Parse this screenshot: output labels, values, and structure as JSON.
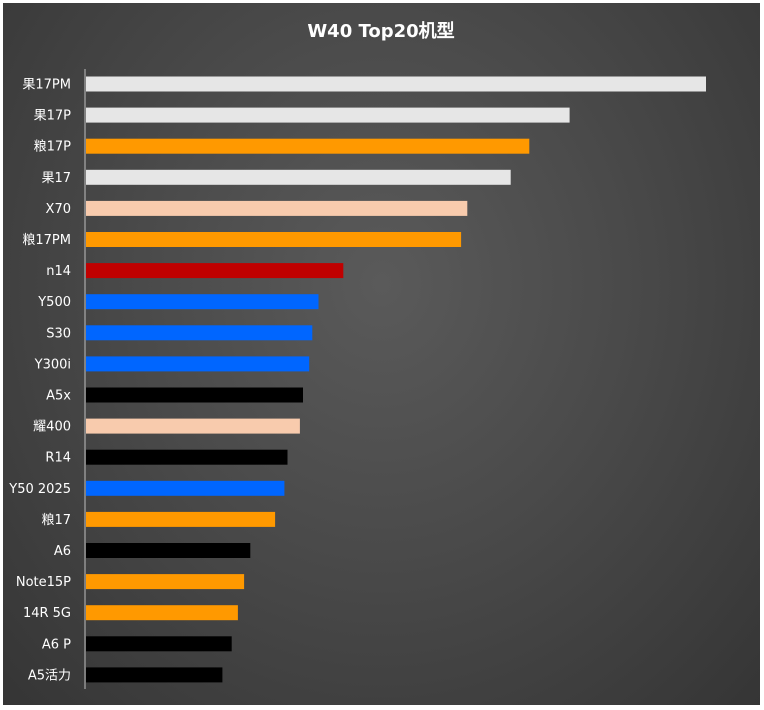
{
  "chart_data": {
    "type": "bar",
    "orientation": "horizontal",
    "title": "W40 Top20机型",
    "xlabel": "",
    "ylabel": "",
    "grid": false,
    "legend": "none",
    "categories": [
      "果17PM",
      "果17P",
      "粮17P",
      "果17",
      "X70",
      "粮17PM",
      "n14",
      "Y500",
      "S30",
      "Y300i",
      "A5x",
      "耀400",
      "R14",
      "Y50 2025",
      "粮17",
      "A6",
      "Note15P",
      "14R 5G",
      "A6 P",
      "A5活力"
    ],
    "values": [
      100,
      78,
      71.5,
      68.5,
      61.5,
      60.5,
      41.5,
      37.5,
      36.5,
      36,
      35,
      34.5,
      32.5,
      32,
      30.5,
      26.5,
      25.5,
      24.5,
      23.5,
      22
    ],
    "colors": [
      "#e6e6e6",
      "#e6e6e6",
      "#ff9900",
      "#e6e6e6",
      "#f8cbad",
      "#ff9900",
      "#c00000",
      "#0066ff",
      "#0066ff",
      "#0066ff",
      "#000000",
      "#f8cbad",
      "#000000",
      "#0066ff",
      "#ff9900",
      "#000000",
      "#ff9900",
      "#ff9900",
      "#000000",
      "#000000"
    ],
    "xlim": [
      0,
      100
    ]
  },
  "colors": {
    "background": "#4a4a4a",
    "axis": "#bfbfbf",
    "text": "#ffffff"
  }
}
